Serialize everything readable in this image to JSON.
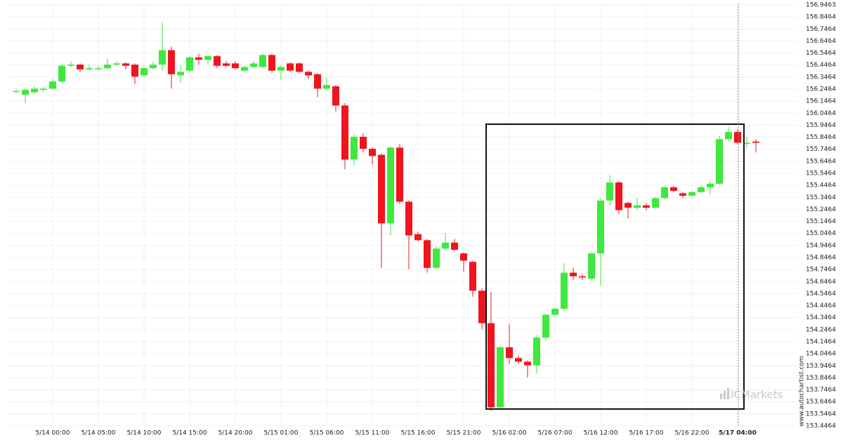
{
  "chart_data": {
    "type": "candlestick",
    "categories": [
      null,
      null,
      null,
      null,
      "5/14 00:00",
      null,
      null,
      null,
      null,
      "5/14 05:00",
      null,
      null,
      null,
      null,
      "5/14 10:00",
      null,
      null,
      null,
      null,
      "5/14 15:00",
      null,
      null,
      null,
      null,
      "5/14 20:00",
      null,
      null,
      null,
      null,
      "5/15 01:00",
      null,
      null,
      null,
      null,
      "5/15 06:00",
      null,
      null,
      null,
      null,
      "5/15 11:00",
      null,
      null,
      null,
      null,
      "5/15 16:00",
      null,
      null,
      null,
      null,
      "5/15 21:00",
      null,
      null,
      null,
      null,
      "5/16 02:00",
      null,
      null,
      null,
      null,
      "5/16 07:00",
      null,
      null,
      null,
      null,
      "5/16 12:00",
      null,
      null,
      null,
      null,
      "5/16 17:00",
      null,
      null,
      null,
      null,
      "5/16 22:00",
      null,
      null,
      null,
      null,
      "5/17 04:00",
      null,
      null
    ],
    "open": [
      156.23,
      156.2,
      156.22,
      156.24,
      156.25,
      156.31,
      156.44,
      156.45,
      156.41,
      156.42,
      156.42,
      156.45,
      156.46,
      156.45,
      156.36,
      156.42,
      156.45,
      156.57,
      156.36,
      156.4,
      156.51,
      156.49,
      156.52,
      156.46,
      156.46,
      156.4,
      156.43,
      156.43,
      156.53,
      156.4,
      156.46,
      156.46,
      156.39,
      156.37,
      156.25,
      156.27,
      156.11,
      155.66,
      155.85,
      155.75,
      155.7,
      155.13,
      155.76,
      155.31,
      155.04,
      154.99,
      154.76,
      154.92,
      154.97,
      154.88,
      154.81,
      154.57,
      154.3,
      153.6,
      154.1,
      154.01,
      153.98,
      153.95,
      154.18,
      154.37,
      154.42,
      154.72,
      154.69,
      154.67,
      154.88,
      155.32,
      155.47,
      155.3,
      155.26,
      155.28,
      155.26,
      155.34,
      155.43,
      155.38,
      155.36,
      155.39,
      155.43,
      155.46,
      155.83,
      155.89,
      155.8,
      155.81
    ],
    "high": [
      156.25,
      156.25,
      156.27,
      156.27,
      156.33,
      156.46,
      156.48,
      156.46,
      156.45,
      156.44,
      156.5,
      156.48,
      156.47,
      156.46,
      156.44,
      156.48,
      156.8,
      156.6,
      156.44,
      156.52,
      156.54,
      156.53,
      156.53,
      156.48,
      156.48,
      156.44,
      156.48,
      156.54,
      156.54,
      156.45,
      156.47,
      156.47,
      156.4,
      156.38,
      156.34,
      156.28,
      156.13,
      155.87,
      155.88,
      155.76,
      155.71,
      155.77,
      155.79,
      155.32,
      155.06,
      155.0,
      154.94,
      155.05,
      155.0,
      154.89,
      154.82,
      154.59,
      154.56,
      154.11,
      154.29,
      154.03,
      153.99,
      154.2,
      154.38,
      154.43,
      154.8,
      154.76,
      154.71,
      154.89,
      155.34,
      155.53,
      155.48,
      155.31,
      155.34,
      155.3,
      155.35,
      155.44,
      155.44,
      155.39,
      155.4,
      155.45,
      155.48,
      155.86,
      155.93,
      155.91,
      155.85,
      155.83
    ],
    "low": [
      156.22,
      156.13,
      156.21,
      156.22,
      156.24,
      156.3,
      156.43,
      156.39,
      156.4,
      156.4,
      156.41,
      156.44,
      156.41,
      156.29,
      156.35,
      156.41,
      156.4,
      156.25,
      156.3,
      156.38,
      156.45,
      156.45,
      156.42,
      156.43,
      156.41,
      156.39,
      156.42,
      156.42,
      156.38,
      156.32,
      156.39,
      156.38,
      156.33,
      156.18,
      156.24,
      156.06,
      155.58,
      155.61,
      155.72,
      155.62,
      154.76,
      155.03,
      155.29,
      154.75,
      154.98,
      154.72,
      154.75,
      154.9,
      154.9,
      154.73,
      154.52,
      154.25,
      153.57,
      153.59,
      153.96,
      153.96,
      153.85,
      153.88,
      154.16,
      154.35,
      154.4,
      154.66,
      154.66,
      154.65,
      154.61,
      155.28,
      155.21,
      155.17,
      155.24,
      155.24,
      155.25,
      155.33,
      155.39,
      155.34,
      155.35,
      155.38,
      155.37,
      155.45,
      155.81,
      155.79,
      155.76,
      155.72
    ],
    "close": [
      156.23,
      156.24,
      156.25,
      156.25,
      156.31,
      156.44,
      156.45,
      156.41,
      156.42,
      156.42,
      156.45,
      156.46,
      156.44,
      156.35,
      156.42,
      156.45,
      156.57,
      156.37,
      156.39,
      156.51,
      156.49,
      156.52,
      156.44,
      156.44,
      156.42,
      156.43,
      156.46,
      156.53,
      156.4,
      156.43,
      156.4,
      156.39,
      156.36,
      156.25,
      156.28,
      156.11,
      155.66,
      155.85,
      155.75,
      155.69,
      155.13,
      155.76,
      155.31,
      155.03,
      154.99,
      154.76,
      154.92,
      154.97,
      154.91,
      154.82,
      154.57,
      154.3,
      153.6,
      154.1,
      154.01,
      153.98,
      153.95,
      154.18,
      154.37,
      154.42,
      154.72,
      154.69,
      154.68,
      154.88,
      155.32,
      155.47,
      155.24,
      155.26,
      155.28,
      155.26,
      155.34,
      155.43,
      155.4,
      155.36,
      155.39,
      155.43,
      155.46,
      155.83,
      155.89,
      155.8,
      155.8,
      155.8
    ],
    "up_color": "#3ee83e",
    "down_color": "#f0141e",
    "ylim": [
      153.4464,
      156.9463
    ],
    "yticks": [
      153.4464,
      153.5464,
      153.6464,
      153.7464,
      153.8464,
      153.9464,
      154.0464,
      154.1464,
      154.2464,
      154.3464,
      154.4464,
      154.5464,
      154.6464,
      154.7464,
      154.8464,
      154.9464,
      155.0464,
      155.1464,
      155.2464,
      155.3464,
      155.4464,
      155.5464,
      155.6464,
      155.7464,
      155.8464,
      155.9464,
      156.0464,
      156.1464,
      156.2464,
      156.3464,
      156.4464,
      156.5464,
      156.6464,
      156.7464,
      156.8464,
      156.9463
    ],
    "grid": true,
    "watermark": "ICMarkets",
    "credit": "www.autochartist.com"
  }
}
